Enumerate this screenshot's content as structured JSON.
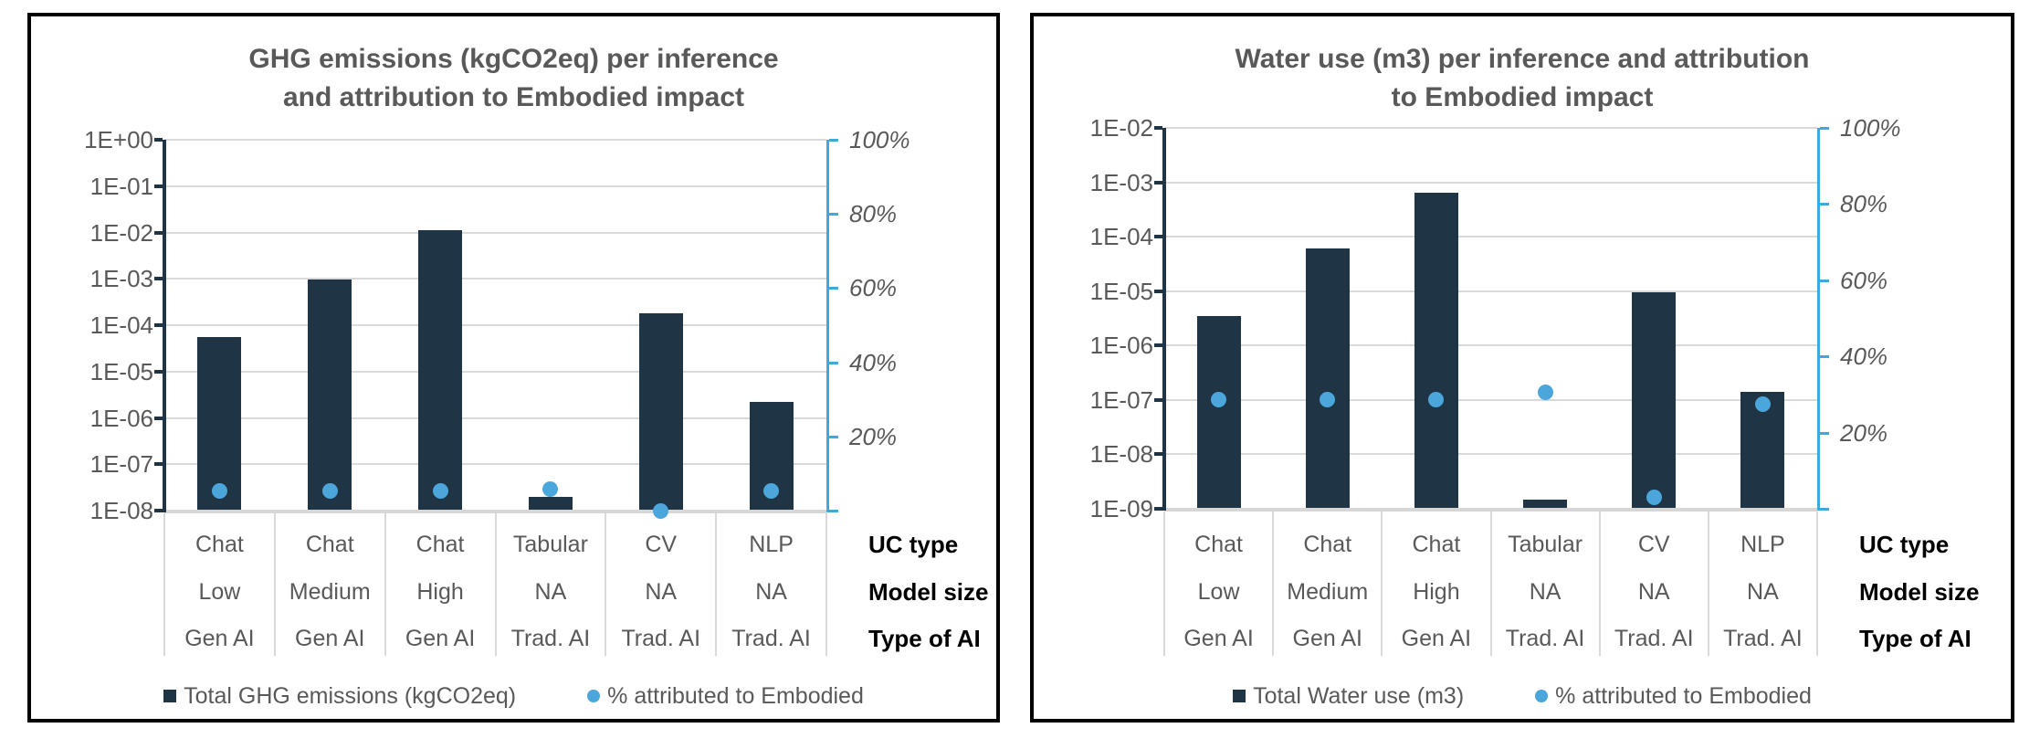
{
  "colors": {
    "bar": "#1f3444",
    "marker": "#4ba6db",
    "right_axis_line": "#41a8dc",
    "left_axis_line": "#1f3444",
    "gridline": "#d9d9d9",
    "bottom_axis": "#d6d6d6",
    "axis_text": "#595959",
    "row_header_text": "#000000",
    "panel_border": "#000000",
    "background": "#ffffff"
  },
  "chart_data": [
    {
      "type": "bar",
      "subtype": "dual-axis: log-scale bars (left) + percent scatter dots (right)",
      "title": "GHG emissions (kgCO2eq) per inference and attribution to Embodied impact",
      "title_lines": [
        "GHG emissions (kgCO2eq) per inference",
        "and attribution to Embodied impact"
      ],
      "categories": [
        {
          "uc_type": "Chat",
          "model_size": "Low",
          "type_of_ai": "Gen AI"
        },
        {
          "uc_type": "Chat",
          "model_size": "Medium",
          "type_of_ai": "Gen AI"
        },
        {
          "uc_type": "Chat",
          "model_size": "High",
          "type_of_ai": "Gen AI"
        },
        {
          "uc_type": "Tabular",
          "model_size": "NA",
          "type_of_ai": "Trad. AI"
        },
        {
          "uc_type": "CV",
          "model_size": "NA",
          "type_of_ai": "Trad. AI"
        },
        {
          "uc_type": "NLP",
          "model_size": "NA",
          "type_of_ai": "Trad. AI"
        }
      ],
      "category_row_headers": [
        "UC type",
        "Model size",
        "Type of AI"
      ],
      "left_axis": {
        "scale": "log",
        "min": 1e-08,
        "max": 1,
        "tick_labels": [
          "1E+00",
          "1E-01",
          "1E-02",
          "1E-03",
          "1E-04",
          "1E-05",
          "1E-06",
          "1E-07",
          "1E-08"
        ]
      },
      "right_axis": {
        "scale": "linear",
        "min": 0,
        "max": 100,
        "tick_labels": [
          "100%",
          "80%",
          "60%",
          "40%",
          "20%"
        ]
      },
      "series": [
        {
          "name": "Total GHG emissions (kgCO2eq)",
          "kind": "bar",
          "axis": "left",
          "values": [
            5.5e-05,
            0.00095,
            0.011,
            2e-08,
            0.00018,
            2.2e-06
          ]
        },
        {
          "name": "% attributed to Embodied",
          "kind": "scatter",
          "axis": "right",
          "values_percent": [
            5.2,
            5.2,
            5.2,
            5.9,
            0,
            5.2
          ]
        }
      ],
      "legend_position": "bottom",
      "grid": "horizontal"
    },
    {
      "type": "bar",
      "subtype": "dual-axis: log-scale bars (left) + percent scatter dots (right)",
      "title": "Water use (m3) per inference and attribution to Embodied impact",
      "title_lines": [
        "Water use (m3) per inference and attribution",
        "to Embodied impact"
      ],
      "categories": [
        {
          "uc_type": "Chat",
          "model_size": "Low",
          "type_of_ai": "Gen AI"
        },
        {
          "uc_type": "Chat",
          "model_size": "Medium",
          "type_of_ai": "Gen AI"
        },
        {
          "uc_type": "Chat",
          "model_size": "High",
          "type_of_ai": "Gen AI"
        },
        {
          "uc_type": "Tabular",
          "model_size": "NA",
          "type_of_ai": "Trad. AI"
        },
        {
          "uc_type": "CV",
          "model_size": "NA",
          "type_of_ai": "Trad. AI"
        },
        {
          "uc_type": "NLP",
          "model_size": "NA",
          "type_of_ai": "Trad. AI"
        }
      ],
      "category_row_headers": [
        "UC type",
        "Model size",
        "Type of AI"
      ],
      "left_axis": {
        "scale": "log",
        "min": 1e-09,
        "max": 0.01,
        "tick_labels": [
          "1E-02",
          "1E-03",
          "1E-04",
          "1E-05",
          "1E-06",
          "1E-07",
          "1E-08",
          "1E-09"
        ]
      },
      "right_axis": {
        "scale": "linear",
        "min": 0,
        "max": 100,
        "tick_labels": [
          "100%",
          "80%",
          "60%",
          "40%",
          "20%"
        ]
      },
      "series": [
        {
          "name": "Total Water use (m3)",
          "kind": "bar",
          "axis": "left",
          "values": [
            3.5e-06,
            6e-05,
            0.00065,
            1.5e-09,
            9.5e-06,
            1.4e-07
          ]
        },
        {
          "name": "% attributed to Embodied",
          "kind": "scatter",
          "axis": "right",
          "values_percent": [
            28.6,
            28.6,
            28.6,
            30.5,
            3,
            27.5
          ]
        }
      ],
      "legend_position": "bottom",
      "grid": "horizontal"
    }
  ]
}
